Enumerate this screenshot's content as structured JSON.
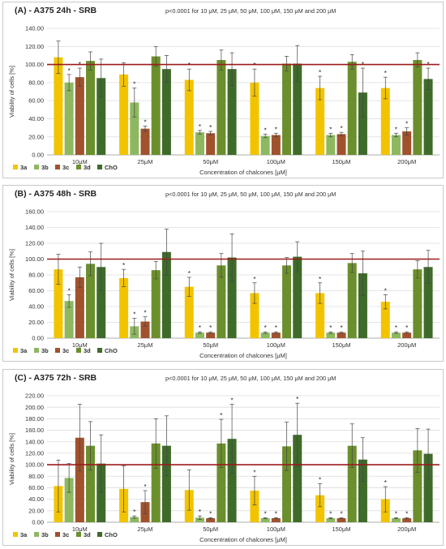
{
  "palette": {
    "3a": "#f2c400",
    "3b": "#8db860",
    "3c": "#a0522d",
    "3d": "#6b8f2c",
    "ChO": "#3e6b2a",
    "reference": "#9b1b1b"
  },
  "chart_data": [
    {
      "type": "bar",
      "title": "(A) - A375 24h - SRB",
      "subtitle": "p<0.0001 for 10 μM, 25 μM, 50 μM, 100 μM, 150 μM and 200 μM",
      "xlabel": "Concentration of chalcones [μM]",
      "ylabel": "Viability of cells [%]",
      "ylim": [
        0,
        140
      ],
      "yticks": [
        "0.00",
        "20.00",
        "40.00",
        "60.00",
        "80.00",
        "100.00",
        "120.00",
        "140.00"
      ],
      "categories": [
        "10μM",
        "25μM",
        "50μM",
        "100μM",
        "150μM",
        "200μM"
      ],
      "reference_line": 100,
      "series": [
        {
          "name": "3a",
          "values": [
            108,
            89,
            83,
            80,
            74,
            74
          ],
          "errors": [
            18,
            13,
            12,
            15,
            13,
            12
          ],
          "significant": [
            false,
            false,
            true,
            true,
            true,
            true
          ]
        },
        {
          "name": "3b",
          "values": [
            80,
            58,
            25,
            21,
            22,
            22
          ],
          "errors": [
            9,
            16,
            2,
            2,
            2,
            2
          ],
          "significant": [
            true,
            true,
            true,
            true,
            true,
            true
          ]
        },
        {
          "name": "3c",
          "values": [
            86,
            29,
            24,
            22,
            23,
            26
          ],
          "errors": [
            10,
            3,
            2,
            2,
            2,
            4
          ],
          "significant": [
            true,
            true,
            true,
            true,
            true,
            true
          ]
        },
        {
          "name": "3d",
          "values": [
            104,
            109,
            105,
            101,
            103,
            105
          ],
          "errors": [
            10,
            11,
            11,
            8,
            8,
            8
          ],
          "significant": [
            false,
            false,
            false,
            false,
            false,
            false
          ]
        },
        {
          "name": "ChO",
          "values": [
            85,
            95,
            95,
            101,
            69,
            84
          ],
          "errors": [
            21,
            15,
            18,
            20,
            27,
            12
          ],
          "significant": [
            false,
            false,
            false,
            false,
            true,
            true
          ]
        }
      ]
    },
    {
      "type": "bar",
      "title": "(B) - A375 48h - SRB",
      "subtitle": "p<0.0001 for 10 μM, 25 μM, 50 μM, 100 μM, 150 μM and 200 μM",
      "xlabel": "Concentration of chalcones [μM]",
      "ylabel": "Viability of cells [%]",
      "ylim": [
        0,
        160
      ],
      "yticks": [
        "0.00",
        "20.00",
        "40.00",
        "60.00",
        "80.00",
        "100.00",
        "120.00",
        "140.00",
        "160.00"
      ],
      "categories": [
        "10μM",
        "25μM",
        "50μM",
        "100μM",
        "150μM",
        "200μM"
      ],
      "reference_line": 100,
      "series": [
        {
          "name": "3a",
          "values": [
            87,
            76,
            65,
            57,
            57,
            46
          ],
          "errors": [
            19,
            11,
            12,
            13,
            13,
            9
          ],
          "significant": [
            false,
            true,
            true,
            true,
            true,
            true
          ]
        },
        {
          "name": "3b",
          "values": [
            47,
            15,
            7,
            7,
            7,
            7
          ],
          "errors": [
            8,
            10,
            1,
            1,
            1,
            1
          ],
          "significant": [
            true,
            true,
            true,
            true,
            true,
            true
          ]
        },
        {
          "name": "3c",
          "values": [
            77,
            21,
            7,
            7,
            7,
            7
          ],
          "errors": [
            13,
            6,
            1,
            1,
            1,
            1
          ],
          "significant": [
            false,
            true,
            true,
            true,
            true,
            true
          ]
        },
        {
          "name": "3d",
          "values": [
            94,
            86,
            92,
            92,
            95,
            87
          ],
          "errors": [
            15,
            11,
            15,
            10,
            12,
            11
          ],
          "significant": [
            false,
            false,
            false,
            false,
            false,
            false
          ]
        },
        {
          "name": "ChO",
          "values": [
            90,
            109,
            102,
            103,
            82,
            90
          ],
          "errors": [
            30,
            29,
            30,
            19,
            28,
            21
          ],
          "significant": [
            false,
            false,
            false,
            false,
            false,
            false
          ]
        }
      ]
    },
    {
      "type": "bar",
      "title": "(C) - A375 72h - SRB",
      "subtitle": "p<0.0001 for 10 μM, 25 μM, 50 μM, 100 μM, 150 μM and 200 μM",
      "xlabel": "Concentration of  chalcones [μM]",
      "ylabel": "Viability of cells [%]",
      "ylim": [
        0,
        220
      ],
      "yticks": [
        "0.00",
        "20.00",
        "40.00",
        "60.00",
        "80.00",
        "100.00",
        "120.00",
        "140.00",
        "160.00",
        "180.00",
        "200.00",
        "220.00"
      ],
      "categories": [
        "10μM",
        "25μM",
        "50μM",
        "100μM",
        "150μM",
        "200μM"
      ],
      "reference_line": 100,
      "series": [
        {
          "name": "3a",
          "values": [
            63,
            58,
            56,
            55,
            47,
            40
          ],
          "errors": [
            45,
            40,
            35,
            25,
            20,
            22
          ],
          "significant": [
            false,
            false,
            false,
            true,
            true,
            true
          ]
        },
        {
          "name": "3b",
          "values": [
            77,
            9,
            8,
            7,
            7,
            7
          ],
          "errors": [
            25,
            2,
            3,
            1,
            1,
            1
          ],
          "significant": [
            false,
            true,
            true,
            true,
            true,
            true
          ]
        },
        {
          "name": "3c",
          "values": [
            147,
            35,
            7,
            7,
            7,
            7
          ],
          "errors": [
            58,
            20,
            1,
            1,
            1,
            1
          ],
          "significant": [
            false,
            true,
            true,
            true,
            true,
            true
          ]
        },
        {
          "name": "3d",
          "values": [
            133,
            137,
            137,
            132,
            133,
            125
          ],
          "errors": [
            42,
            43,
            42,
            42,
            38,
            38
          ],
          "significant": [
            false,
            false,
            true,
            false,
            false,
            false
          ]
        },
        {
          "name": "ChO",
          "values": [
            102,
            133,
            145,
            152,
            109,
            119
          ],
          "errors": [
            50,
            52,
            60,
            55,
            38,
            43
          ],
          "significant": [
            false,
            false,
            true,
            true,
            false,
            false
          ]
        }
      ]
    }
  ]
}
